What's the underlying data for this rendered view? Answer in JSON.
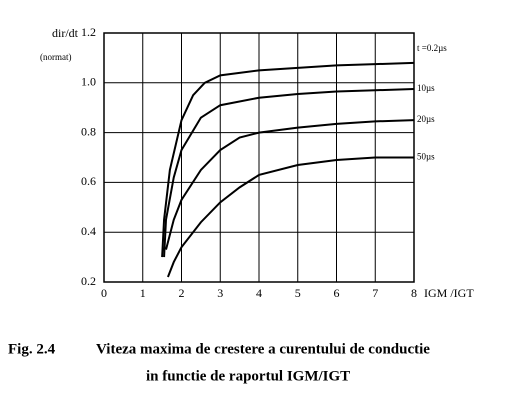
{
  "chart_data": {
    "type": "line",
    "y_label": "dir/dt",
    "y_unit": "(normat)",
    "x_label": "IGM /IGT",
    "xlim": [
      0,
      8
    ],
    "xticks": [
      0,
      1,
      2,
      3,
      4,
      5,
      6,
      7,
      8
    ],
    "ylim": [
      0.2,
      1.2
    ],
    "yticks": [
      0.2,
      0.4,
      0.6,
      0.8,
      {
        "value": 1,
        "label": "1.0"
      },
      1.2
    ],
    "grid": true,
    "series": [
      {
        "name": "t =0.2µs",
        "color": "#000000",
        "x": [
          1.5,
          1.55,
          1.7,
          2.0,
          2.3,
          2.6,
          3,
          4,
          5,
          6,
          7,
          8
        ],
        "values": [
          0.3,
          0.45,
          0.65,
          0.85,
          0.95,
          1.0,
          1.03,
          1.05,
          1.06,
          1.07,
          1.075,
          1.08
        ]
      },
      {
        "name": "10µs",
        "color": "#000000",
        "x": [
          1.55,
          1.6,
          1.8,
          2.0,
          2.5,
          3,
          4,
          5,
          6,
          7,
          8
        ],
        "values": [
          0.3,
          0.45,
          0.62,
          0.73,
          0.86,
          0.91,
          0.94,
          0.955,
          0.965,
          0.97,
          0.975
        ]
      },
      {
        "name": "20µs",
        "color": "#000000",
        "x": [
          1.6,
          1.8,
          2,
          2.5,
          3,
          3.5,
          4,
          5,
          6,
          7,
          8
        ],
        "values": [
          0.33,
          0.45,
          0.53,
          0.65,
          0.73,
          0.78,
          0.8,
          0.82,
          0.835,
          0.845,
          0.85
        ]
      },
      {
        "name": "50µs",
        "color": "#000000",
        "x": [
          1.65,
          1.8,
          2,
          2.5,
          3,
          3.5,
          4,
          5,
          6,
          7,
          8
        ],
        "values": [
          0.22,
          0.28,
          0.34,
          0.44,
          0.52,
          0.58,
          0.63,
          0.67,
          0.69,
          0.7,
          0.7
        ]
      }
    ],
    "caption_label": "Fig. 2.4",
    "caption_line1": "Viteza maxima de crestere a curentului de conductie",
    "caption_line2": "in functie de raportul IGM/IGT"
  }
}
